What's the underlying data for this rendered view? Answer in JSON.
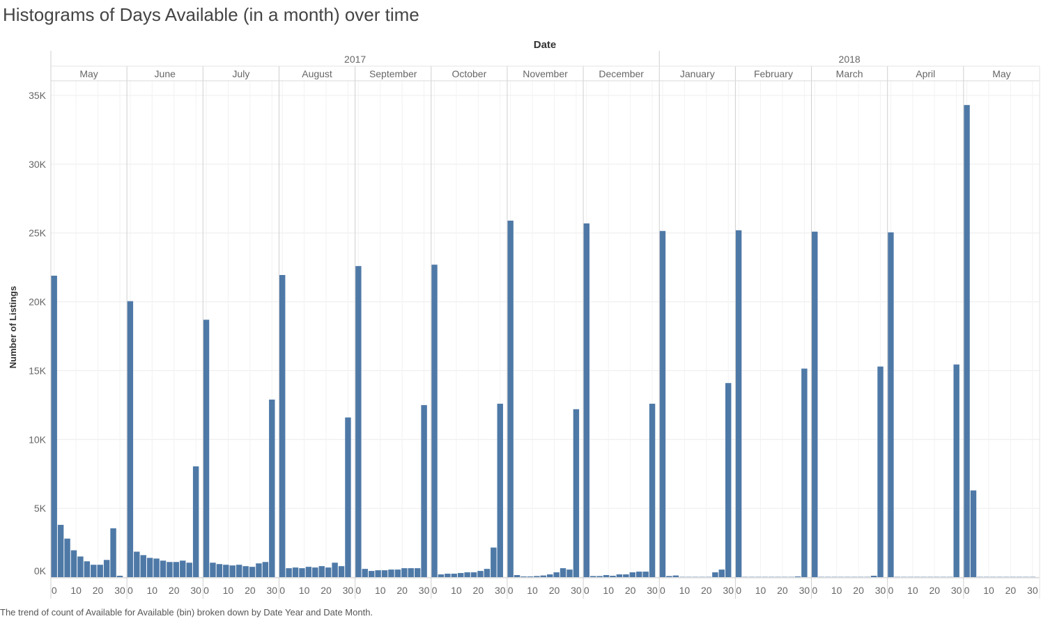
{
  "title": "Histograms of Days Available (in a month) over time",
  "caption": "The trend of count of Available for Available (bin) broken down by Date Year and Date Month.",
  "chart_data": {
    "type": "bar",
    "header_title": "Date",
    "ylabel": "Number of Listings",
    "ylim": [
      0,
      36000
    ],
    "yticks": [
      0,
      5000,
      10000,
      15000,
      20000,
      25000,
      30000,
      35000
    ],
    "ytick_labels": [
      "0K",
      "5K",
      "10K",
      "15K",
      "20K",
      "25K",
      "30K",
      "35K"
    ],
    "xtick_labels": [
      "0",
      "10",
      "20",
      "30"
    ],
    "bin_width_days": 3,
    "bins": [
      0,
      3,
      6,
      9,
      12,
      15,
      18,
      21,
      24,
      27,
      30
    ],
    "bar_color": "#4e79a7",
    "grid": true,
    "years": [
      {
        "label": "2017",
        "month_count": 8
      },
      {
        "label": "2018",
        "month_count": 5
      }
    ],
    "panels": [
      {
        "month": "May",
        "year": "2017",
        "values": [
          21900,
          3800,
          2800,
          1950,
          1500,
          1150,
          900,
          900,
          1250,
          3550,
          100
        ]
      },
      {
        "month": "June",
        "year": "2017",
        "values": [
          20050,
          1850,
          1600,
          1400,
          1350,
          1200,
          1100,
          1100,
          1200,
          1050,
          8050
        ]
      },
      {
        "month": "July",
        "year": "2017",
        "values": [
          18700,
          1050,
          950,
          900,
          850,
          900,
          800,
          750,
          1000,
          1100,
          12900
        ]
      },
      {
        "month": "August",
        "year": "2017",
        "values": [
          21950,
          650,
          700,
          650,
          750,
          700,
          800,
          700,
          1050,
          800,
          11600
        ]
      },
      {
        "month": "September",
        "year": "2017",
        "values": [
          22600,
          600,
          450,
          500,
          500,
          550,
          550,
          650,
          650,
          650,
          12500
        ]
      },
      {
        "month": "October",
        "year": "2017",
        "values": [
          22700,
          200,
          250,
          250,
          300,
          350,
          350,
          450,
          600,
          2150,
          12600
        ]
      },
      {
        "month": "November",
        "year": "2017",
        "values": [
          25900,
          150,
          50,
          50,
          80,
          120,
          200,
          350,
          650,
          550,
          12200
        ]
      },
      {
        "month": "December",
        "year": "2017",
        "values": [
          25700,
          80,
          80,
          150,
          100,
          200,
          200,
          350,
          400,
          400,
          12600
        ]
      },
      {
        "month": "January",
        "year": "2018",
        "values": [
          25150,
          80,
          120,
          20,
          20,
          20,
          20,
          20,
          350,
          550,
          14100
        ]
      },
      {
        "month": "February",
        "year": "2018",
        "values": [
          25200,
          20,
          20,
          20,
          20,
          20,
          20,
          20,
          20,
          50,
          15150
        ]
      },
      {
        "month": "March",
        "year": "2018",
        "values": [
          25100,
          20,
          20,
          20,
          20,
          20,
          20,
          20,
          20,
          100,
          15300
        ]
      },
      {
        "month": "April",
        "year": "2018",
        "values": [
          25050,
          20,
          20,
          20,
          20,
          20,
          20,
          20,
          20,
          20,
          15450
        ]
      },
      {
        "month": "May",
        "year": "2018",
        "values": [
          34300,
          6300,
          20,
          20,
          20,
          20,
          20,
          20,
          20,
          20,
          20
        ]
      }
    ]
  }
}
